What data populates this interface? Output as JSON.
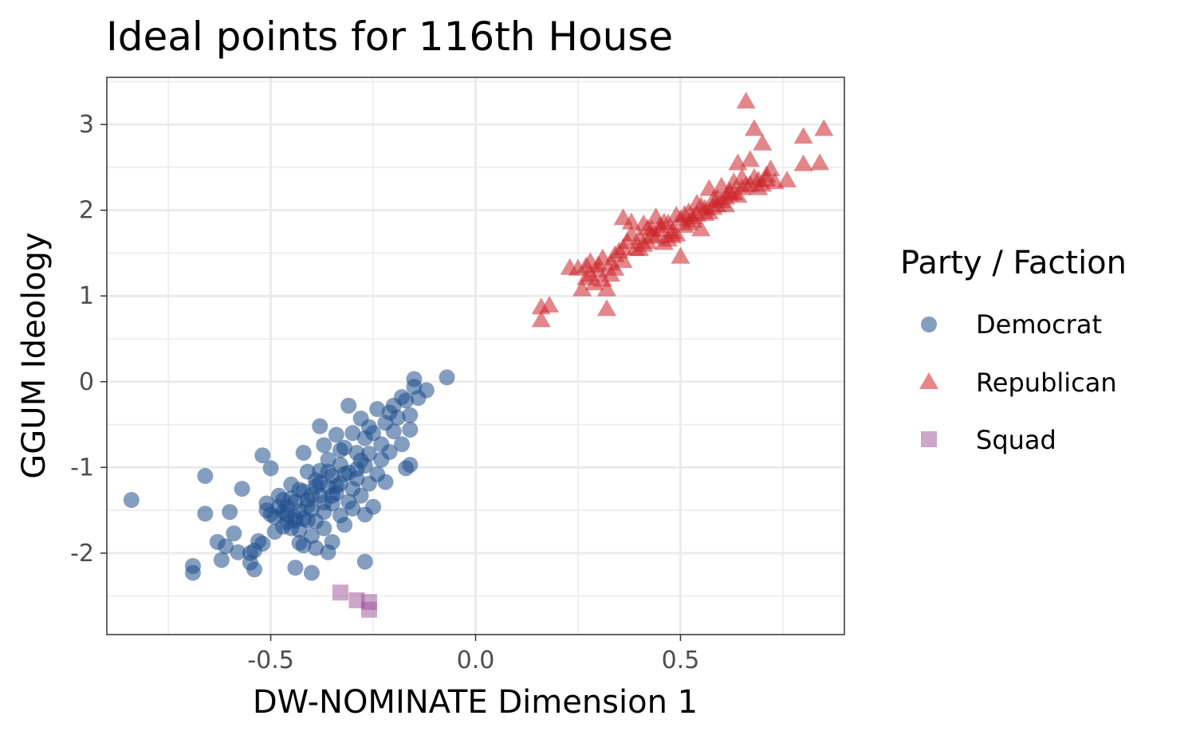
{
  "chart_data": {
    "type": "scatter",
    "title": "Ideal points for 116th House",
    "xlabel": "DW-NOMINATE Dimension 1",
    "ylabel": "GGUM Ideology",
    "xlim": [
      -0.9,
      0.9
    ],
    "ylim": [
      -2.95,
      3.55
    ],
    "x_ticks": [
      -0.5,
      0.0,
      0.5
    ],
    "x_tick_labels": [
      "-0.5",
      "0.0",
      "0.5"
    ],
    "y_ticks": [
      -2,
      -1,
      0,
      1,
      2,
      3
    ],
    "y_tick_labels": [
      "-2",
      "-1",
      "0",
      "1",
      "2",
      "3"
    ],
    "grid": true,
    "legend": {
      "title": "Party / Faction",
      "position": "right"
    },
    "series": [
      {
        "name": "Democrat",
        "marker": "circle",
        "color": "#1f4e8c",
        "opacity": 0.55,
        "points": [
          [
            -0.84,
            -1.38
          ],
          [
            -0.66,
            -1.1
          ],
          [
            -0.66,
            -1.54
          ],
          [
            -0.69,
            -2.15
          ],
          [
            -0.69,
            -2.23
          ],
          [
            -0.63,
            -1.87
          ],
          [
            -0.62,
            -2.08
          ],
          [
            -0.61,
            -1.92
          ],
          [
            -0.6,
            -1.52
          ],
          [
            -0.59,
            -1.77
          ],
          [
            -0.58,
            -1.99
          ],
          [
            -0.57,
            -1.25
          ],
          [
            -0.55,
            -2.0
          ],
          [
            -0.55,
            -2.11
          ],
          [
            -0.54,
            -2.19
          ],
          [
            -0.54,
            -1.97
          ],
          [
            -0.53,
            -1.86
          ],
          [
            -0.52,
            -0.86
          ],
          [
            -0.52,
            -1.89
          ],
          [
            -0.51,
            -1.5
          ],
          [
            -0.51,
            -1.42
          ],
          [
            -0.5,
            -1.01
          ],
          [
            -0.49,
            -1.75
          ],
          [
            -0.49,
            -1.58
          ],
          [
            -0.48,
            -1.33
          ],
          [
            -0.47,
            -1.52
          ],
          [
            -0.47,
            -1.38
          ],
          [
            -0.46,
            -1.64
          ],
          [
            -0.46,
            -1.46
          ],
          [
            -0.45,
            -1.2
          ],
          [
            -0.45,
            -1.71
          ],
          [
            -0.44,
            -1.58
          ],
          [
            -0.44,
            -1.4
          ],
          [
            -0.44,
            -2.17
          ],
          [
            -0.43,
            -1.51
          ],
          [
            -0.43,
            -1.26
          ],
          [
            -0.43,
            -1.73
          ],
          [
            -0.42,
            -1.6
          ],
          [
            -0.42,
            -0.83
          ],
          [
            -0.42,
            -1.91
          ],
          [
            -0.41,
            -1.38
          ],
          [
            -0.41,
            -1.05
          ],
          [
            -0.4,
            -2.23
          ],
          [
            -0.4,
            -1.49
          ],
          [
            -0.4,
            -1.8
          ],
          [
            -0.39,
            -1.15
          ],
          [
            -0.39,
            -1.63
          ],
          [
            -0.39,
            -1.94
          ],
          [
            -0.38,
            -1.33
          ],
          [
            -0.38,
            -0.52
          ],
          [
            -0.38,
            -1.04
          ],
          [
            -0.37,
            -1.52
          ],
          [
            -0.37,
            -0.74
          ],
          [
            -0.37,
            -1.71
          ],
          [
            -0.36,
            -1.23
          ],
          [
            -0.36,
            -0.91
          ],
          [
            -0.36,
            -1.99
          ],
          [
            -0.35,
            -1.42
          ],
          [
            -0.35,
            -1.1
          ],
          [
            -0.35,
            -1.87
          ],
          [
            -0.34,
            -0.62
          ],
          [
            -0.34,
            -1.3
          ],
          [
            -0.33,
            -1.56
          ],
          [
            -0.33,
            -0.97
          ],
          [
            -0.33,
            -1.19
          ],
          [
            -0.32,
            -0.77
          ],
          [
            -0.32,
            -1.67
          ],
          [
            -0.31,
            -1.4
          ],
          [
            -0.31,
            -0.28
          ],
          [
            -0.31,
            -1.06
          ],
          [
            -0.3,
            -1.25
          ],
          [
            -0.3,
            -0.6
          ],
          [
            -0.3,
            -1.48
          ],
          [
            -0.29,
            -0.83
          ],
          [
            -0.29,
            -1.13
          ],
          [
            -0.28,
            -0.43
          ],
          [
            -0.28,
            -1.33
          ],
          [
            -0.27,
            -0.98
          ],
          [
            -0.27,
            -0.66
          ],
          [
            -0.27,
            -1.55
          ],
          [
            -0.26,
            -1.19
          ],
          [
            -0.26,
            -0.53
          ],
          [
            -0.26,
            -0.84
          ],
          [
            -0.25,
            -1.46
          ],
          [
            -0.25,
            -0.6
          ],
          [
            -0.24,
            -1.08
          ],
          [
            -0.24,
            -0.32
          ],
          [
            -0.23,
            -0.73
          ],
          [
            -0.23,
            -0.91
          ],
          [
            -0.22,
            -0.48
          ],
          [
            -0.22,
            -1.17
          ],
          [
            -0.21,
            -0.36
          ],
          [
            -0.21,
            -0.82
          ],
          [
            -0.2,
            -0.58
          ],
          [
            -0.2,
            -0.28
          ],
          [
            -0.19,
            -0.42
          ],
          [
            -0.18,
            -0.18
          ],
          [
            -0.18,
            -0.73
          ],
          [
            -0.17,
            -1.01
          ],
          [
            -0.17,
            -0.22
          ],
          [
            -0.16,
            -0.97
          ],
          [
            -0.16,
            -0.56
          ],
          [
            -0.16,
            -0.39
          ],
          [
            -0.15,
            -0.06
          ],
          [
            -0.15,
            0.03
          ],
          [
            -0.14,
            -0.19
          ],
          [
            -0.12,
            -0.1
          ],
          [
            -0.07,
            0.05
          ],
          [
            -0.27,
            -2.1
          ],
          [
            -0.43,
            -1.88
          ],
          [
            -0.41,
            -1.45
          ],
          [
            -0.39,
            -1.22
          ],
          [
            -0.37,
            -1.41
          ],
          [
            -0.35,
            -1.33
          ],
          [
            -0.44,
            -1.62
          ],
          [
            -0.47,
            -1.69
          ],
          [
            -0.5,
            -1.55
          ],
          [
            -0.48,
            -1.46
          ],
          [
            -0.4,
            -1.32
          ],
          [
            -0.38,
            -1.18
          ],
          [
            -0.34,
            -1.22
          ],
          [
            -0.32,
            -1.08
          ],
          [
            -0.29,
            -1.02
          ],
          [
            -0.28,
            -0.92
          ],
          [
            -0.33,
            -0.8
          ],
          [
            -0.36,
            -1.05
          ],
          [
            -0.42,
            -1.28
          ],
          [
            -0.45,
            -1.36
          ],
          [
            -0.46,
            -1.55
          ],
          [
            -0.41,
            -1.62
          ]
        ]
      },
      {
        "name": "Republican",
        "marker": "triangle",
        "color": "#cc2529",
        "opacity": 0.55,
        "points": [
          [
            0.16,
            0.72
          ],
          [
            0.16,
            0.87
          ],
          [
            0.18,
            0.89
          ],
          [
            0.23,
            1.33
          ],
          [
            0.25,
            1.32
          ],
          [
            0.26,
            1.08
          ],
          [
            0.27,
            1.21
          ],
          [
            0.28,
            1.4
          ],
          [
            0.29,
            1.15
          ],
          [
            0.3,
            1.36
          ],
          [
            0.31,
            1.44
          ],
          [
            0.32,
            0.85
          ],
          [
            0.32,
            1.08
          ],
          [
            0.33,
            1.25
          ],
          [
            0.34,
            1.32
          ],
          [
            0.35,
            1.52
          ],
          [
            0.36,
            1.41
          ],
          [
            0.36,
            1.91
          ],
          [
            0.37,
            1.63
          ],
          [
            0.38,
            1.72
          ],
          [
            0.39,
            1.55
          ],
          [
            0.4,
            1.68
          ],
          [
            0.41,
            1.84
          ],
          [
            0.42,
            1.63
          ],
          [
            0.43,
            1.71
          ],
          [
            0.44,
            1.92
          ],
          [
            0.45,
            1.77
          ],
          [
            0.46,
            1.62
          ],
          [
            0.47,
            1.85
          ],
          [
            0.48,
            1.75
          ],
          [
            0.49,
            1.94
          ],
          [
            0.5,
            1.46
          ],
          [
            0.51,
            1.82
          ],
          [
            0.52,
            1.98
          ],
          [
            0.53,
            1.88
          ],
          [
            0.54,
            2.08
          ],
          [
            0.55,
            1.78
          ],
          [
            0.56,
            1.96
          ],
          [
            0.57,
            2.25
          ],
          [
            0.58,
            2.03
          ],
          [
            0.59,
            2.14
          ],
          [
            0.6,
            2.28
          ],
          [
            0.61,
            2.06
          ],
          [
            0.62,
            2.22
          ],
          [
            0.63,
            2.33
          ],
          [
            0.64,
            2.17
          ],
          [
            0.64,
            2.55
          ],
          [
            0.65,
            2.38
          ],
          [
            0.66,
            3.27
          ],
          [
            0.67,
            2.59
          ],
          [
            0.68,
            2.95
          ],
          [
            0.69,
            2.26
          ],
          [
            0.7,
            2.78
          ],
          [
            0.71,
            2.41
          ],
          [
            0.72,
            2.48
          ],
          [
            0.73,
            2.33
          ],
          [
            0.76,
            2.35
          ],
          [
            0.8,
            2.54
          ],
          [
            0.8,
            2.86
          ],
          [
            0.84,
            2.55
          ],
          [
            0.85,
            2.95
          ],
          [
            0.38,
            1.86
          ],
          [
            0.4,
            1.55
          ],
          [
            0.42,
            1.79
          ],
          [
            0.44,
            1.69
          ],
          [
            0.46,
            1.86
          ],
          [
            0.48,
            1.7
          ],
          [
            0.5,
            1.9
          ],
          [
            0.52,
            1.85
          ],
          [
            0.54,
            1.95
          ],
          [
            0.56,
            2.02
          ],
          [
            0.58,
            2.12
          ],
          [
            0.6,
            2.11
          ],
          [
            0.62,
            2.19
          ],
          [
            0.66,
            2.29
          ],
          [
            0.68,
            2.38
          ],
          [
            0.7,
            2.3
          ],
          [
            0.34,
            1.48
          ],
          [
            0.36,
            1.56
          ],
          [
            0.3,
            1.3
          ],
          [
            0.28,
            1.25
          ],
          [
            0.27,
            1.35
          ],
          [
            0.31,
            1.19
          ],
          [
            0.33,
            1.38
          ],
          [
            0.41,
            1.6
          ],
          [
            0.43,
            1.78
          ],
          [
            0.45,
            1.82
          ],
          [
            0.47,
            1.66
          ],
          [
            0.49,
            1.72
          ],
          [
            0.51,
            1.95
          ],
          [
            0.53,
            1.92
          ],
          [
            0.55,
            2.05
          ],
          [
            0.57,
            1.98
          ],
          [
            0.59,
            2.06
          ],
          [
            0.61,
            2.15
          ],
          [
            0.63,
            2.2
          ],
          [
            0.65,
            2.26
          ],
          [
            0.67,
            2.3
          ],
          [
            0.69,
            2.35
          ],
          [
            0.71,
            2.36
          ]
        ]
      },
      {
        "name": "Squad",
        "marker": "square",
        "color": "#9b4f96",
        "opacity": 0.5,
        "points": [
          [
            -0.33,
            -2.46
          ],
          [
            -0.29,
            -2.55
          ],
          [
            -0.26,
            -2.57
          ],
          [
            -0.26,
            -2.66
          ]
        ]
      }
    ]
  }
}
